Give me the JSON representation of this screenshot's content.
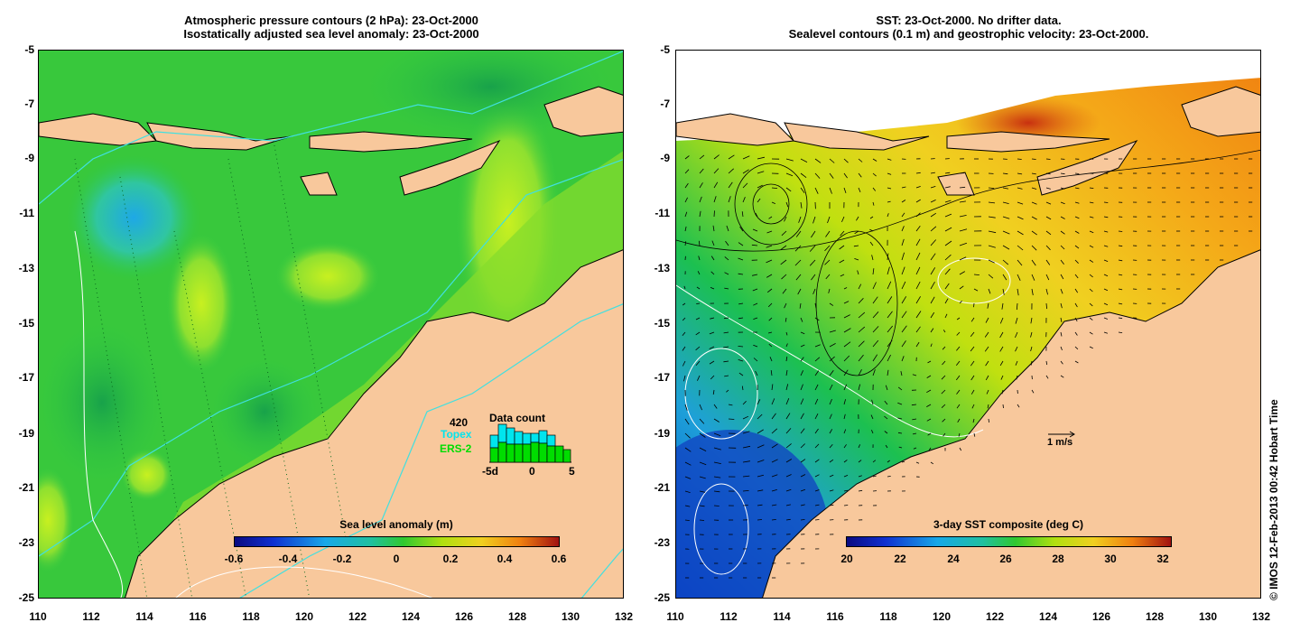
{
  "left_panel": {
    "title_line1": "Atmospheric pressure contours (2 hPa): 23-Oct-2000",
    "title_line2": "Isostatically adjusted sea level anomaly: 23-Oct-2000",
    "colorbar": {
      "title": "Sea level anomaly (m)",
      "ticks": [
        "-0.6",
        "-0.4",
        "-0.2",
        "0",
        "0.2",
        "0.4",
        "0.6"
      ]
    },
    "data_count": {
      "title": "Data count",
      "max_label": "420",
      "topex_label": "Topex",
      "ers_label": "ERS-2",
      "x_ticks": [
        "-5d",
        "0",
        "5"
      ],
      "topex_color": "#00e5ee",
      "ers_color": "#00dd00"
    }
  },
  "right_panel": {
    "title_line1": "SST: 23-Oct-2000. No drifter data.",
    "title_line2": "Sealevel contours (0.1 m) and geostrophic velocity: 23-Oct-2000.",
    "colorbar": {
      "title": "3-day SST composite (deg C)",
      "ticks": [
        "20",
        "22",
        "24",
        "26",
        "28",
        "30",
        "32"
      ]
    },
    "scale_label": "1 m/s"
  },
  "y_ticks": [
    "-5",
    "-7",
    "-9",
    "-11",
    "-13",
    "-15",
    "-17",
    "-19",
    "-21",
    "-23",
    "-25"
  ],
  "x_ticks": [
    "110",
    "112",
    "114",
    "116",
    "118",
    "120",
    "122",
    "124",
    "126",
    "128",
    "130",
    "132"
  ],
  "credit": "© IMOS 12-Feb-2013 00:42 Hobart Time",
  "colors": {
    "land": "#f8c89c",
    "ocean_green": "#2ec843",
    "pressure_contour": "#40e0e0"
  }
}
